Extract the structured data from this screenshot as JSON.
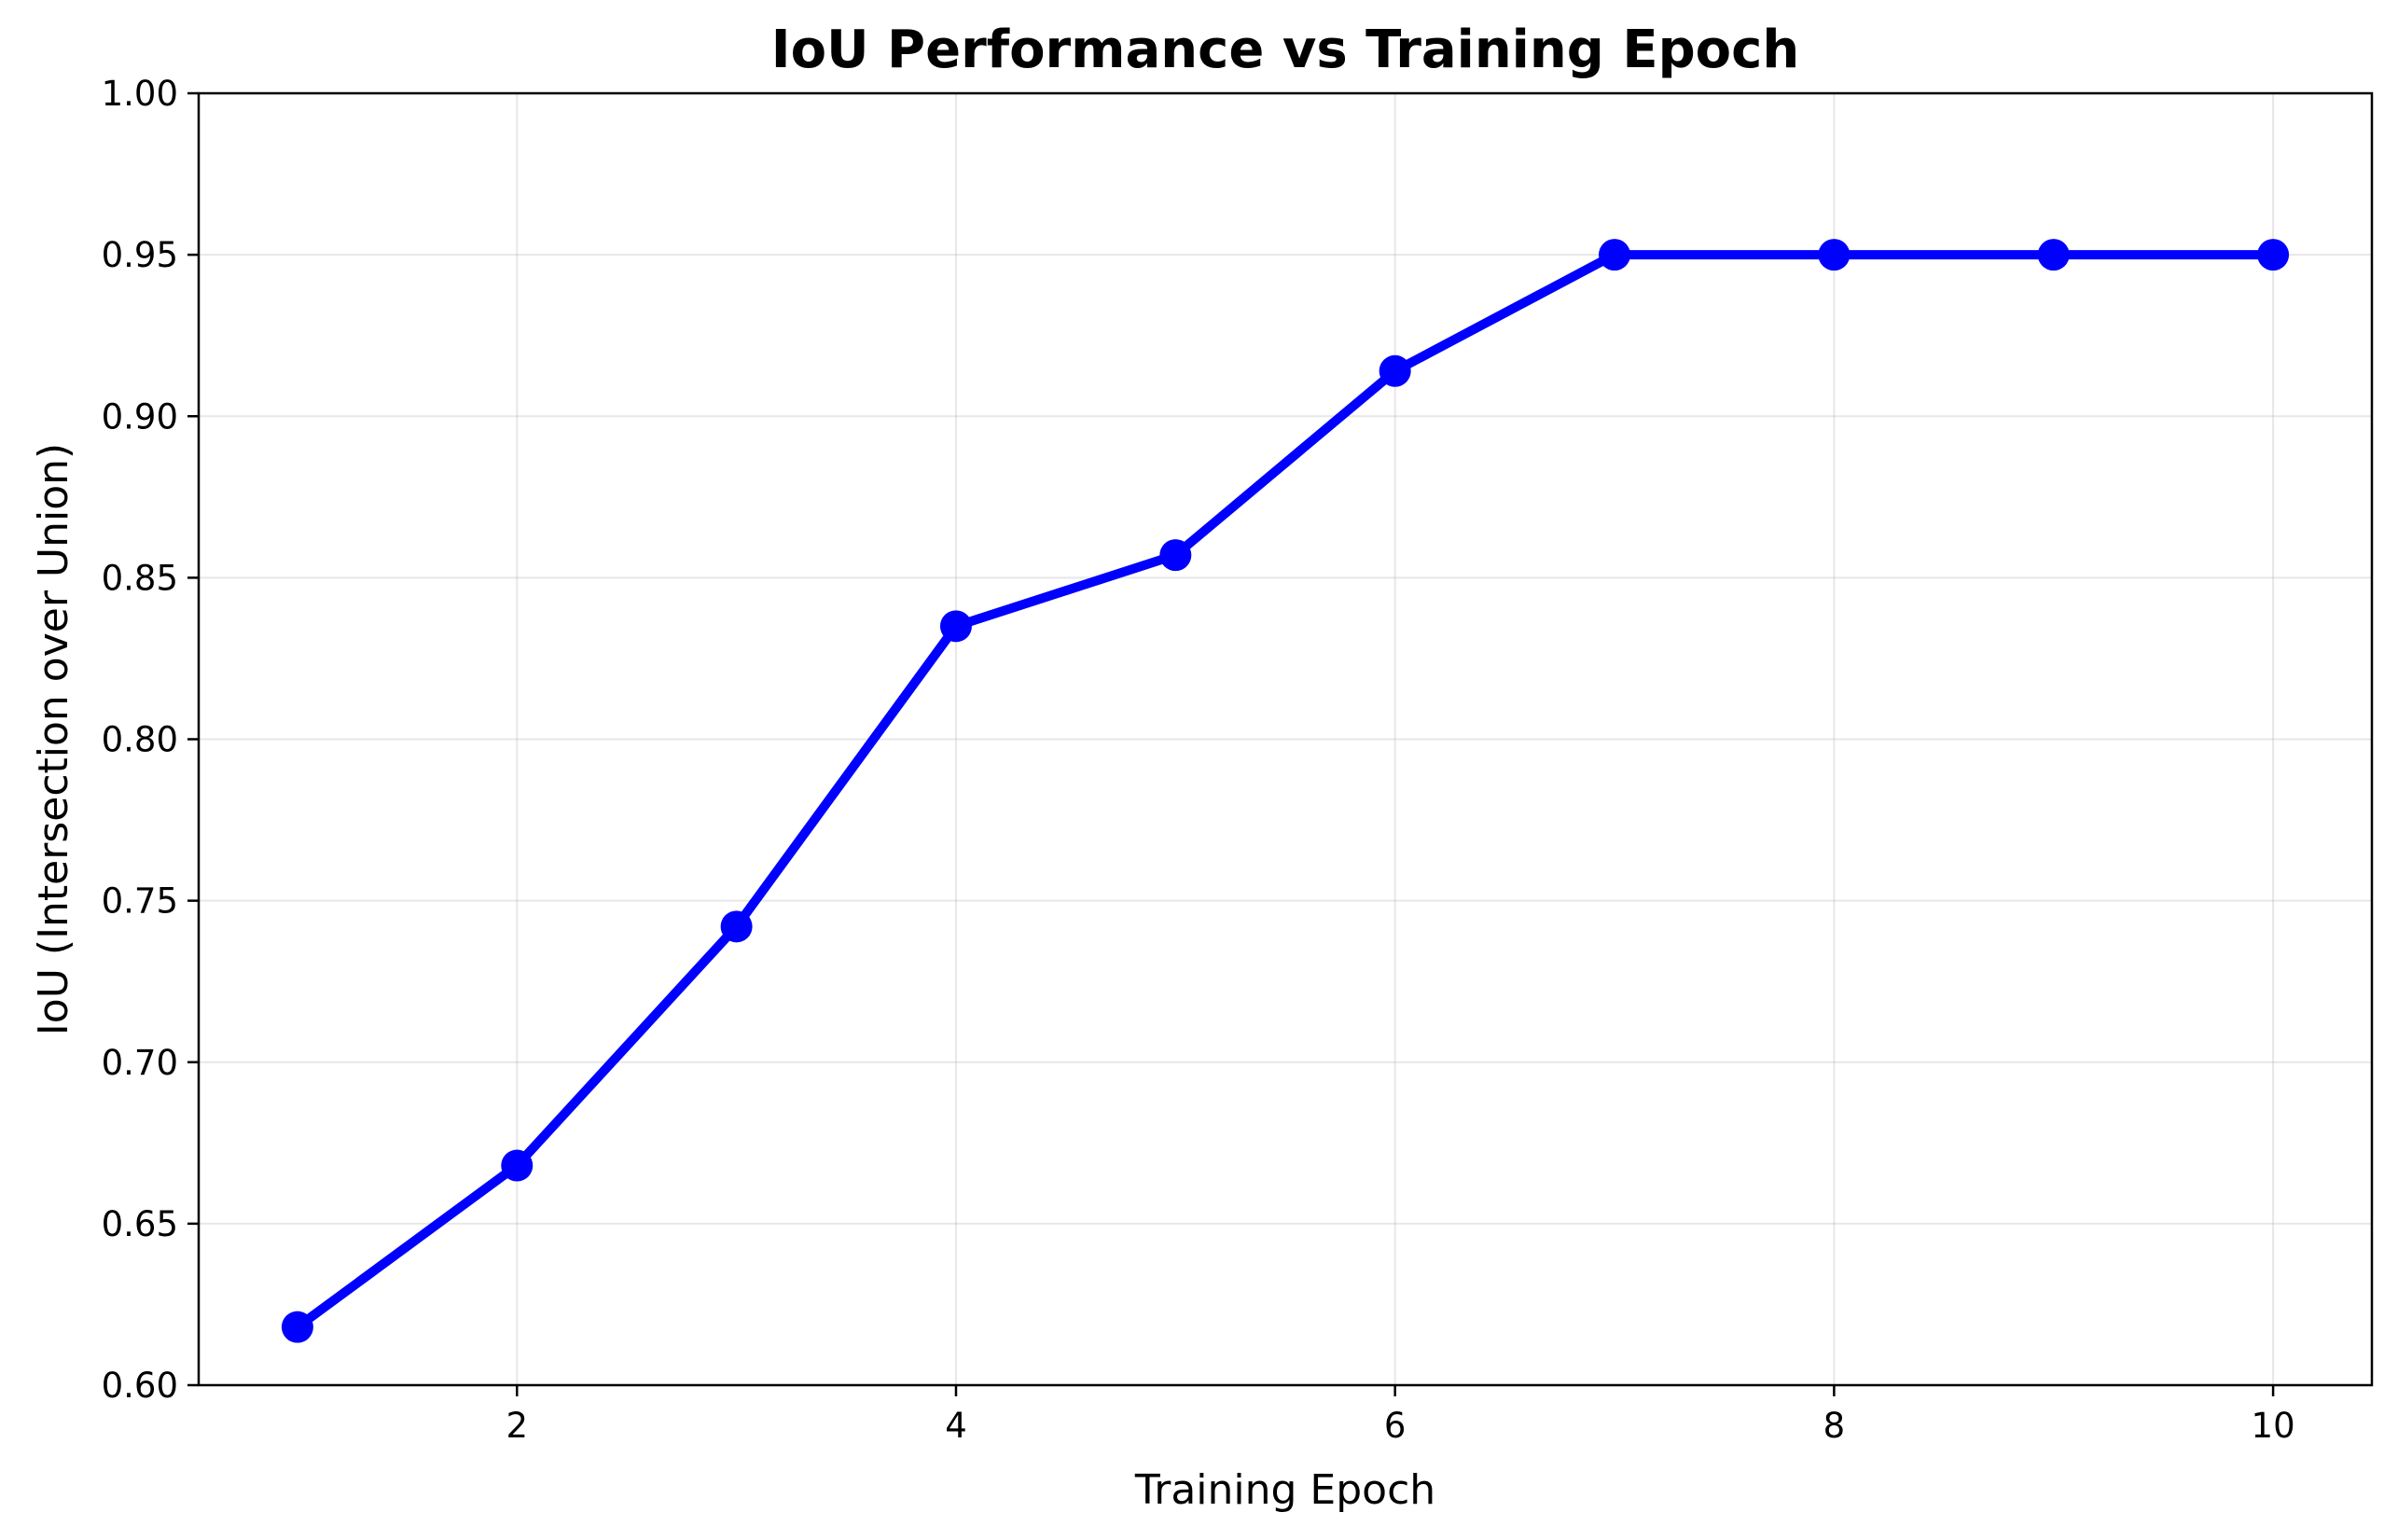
{
  "chart_data": {
    "type": "line",
    "title": "IoU Performance vs Training Epoch",
    "xlabel": "Training Epoch",
    "ylabel": "IoU (Intersection over Union)",
    "xlim": [
      0.55,
      10.45
    ],
    "ylim": [
      0.6,
      1.0
    ],
    "xticks": [
      2,
      4,
      6,
      8,
      10
    ],
    "xtick_labels": [
      "2",
      "4",
      "6",
      "8",
      "10"
    ],
    "yticks": [
      0.6,
      0.65,
      0.7,
      0.75,
      0.8,
      0.85,
      0.9,
      0.95,
      1.0
    ],
    "ytick_labels": [
      "0.60",
      "0.65",
      "0.70",
      "0.75",
      "0.80",
      "0.85",
      "0.90",
      "0.95",
      "1.00"
    ],
    "grid": true,
    "series": [
      {
        "color": "#0000ff",
        "marker": "circle",
        "x": [
          1,
          2,
          3,
          4,
          5,
          6,
          7,
          8,
          9,
          10
        ],
        "y": [
          0.618,
          0.668,
          0.742,
          0.835,
          0.857,
          0.914,
          0.95,
          0.95,
          0.95,
          0.95
        ]
      }
    ]
  }
}
